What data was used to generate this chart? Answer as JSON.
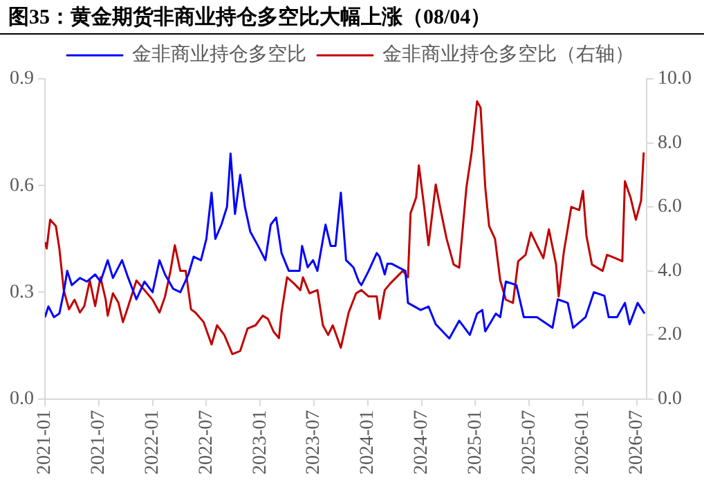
{
  "chart_data": {
    "type": "line",
    "title": "图35：黄金期货非商业持仓多空比大幅上涨（08/04）",
    "xlim": [
      "2021-01-01",
      "2026-08-04"
    ],
    "xticks": [
      "2021-01",
      "2021-07",
      "2022-01",
      "2022-07",
      "2023-01",
      "2023-07",
      "2024-01",
      "2024-07",
      "2025-01",
      "2025-07",
      "2026-01",
      "2026-07"
    ],
    "ylim": [
      0,
      0.9
    ],
    "yticks": [
      {
        "value": 0,
        "label": "0.0"
      },
      {
        "value": 0.3,
        "label": "0.3"
      },
      {
        "value": 0.6,
        "label": "0.6"
      },
      {
        "value": 0.9,
        "label": "0.9"
      }
    ],
    "y2lim": [
      0,
      10
    ],
    "y2ticks": [
      {
        "value": 0,
        "label": "0.0"
      },
      {
        "value": 2,
        "label": "2.0"
      },
      {
        "value": 4,
        "label": "4.0"
      },
      {
        "value": 6,
        "label": "6.0"
      },
      {
        "value": 8,
        "label": "8.0"
      },
      {
        "value": 10,
        "label": "10.0"
      }
    ],
    "grid": false,
    "legend": "top",
    "marker": "none",
    "line_style": "solid",
    "series": [
      {
        "name": "金非商业持仓多空比",
        "color": "#0000ff",
        "x": [
          "2021-01-01",
          "2021-01-13",
          "2021-02-01",
          "2021-02-18",
          "2021-03-04",
          "2021-03-16",
          "2021-04-01",
          "2021-04-28",
          "2021-05-22",
          "2021-06-19",
          "2021-07-07",
          "2021-08-01",
          "2021-08-19",
          "2021-09-19",
          "2021-10-10",
          "2021-11-07",
          "2021-12-04",
          "2022-01-01",
          "2022-01-25",
          "2022-02-12",
          "2022-03-10",
          "2022-04-04",
          "2022-05-01",
          "2022-05-19",
          "2022-06-13",
          "2022-07-01",
          "2022-07-19",
          "2022-08-01",
          "2022-08-22",
          "2022-09-10",
          "2022-09-22",
          "2022-10-07",
          "2022-10-25",
          "2022-11-10",
          "2022-11-28",
          "2022-12-25",
          "2023-01-19",
          "2023-02-06",
          "2023-02-23",
          "2023-03-13",
          "2023-04-07",
          "2023-05-13",
          "2023-05-22",
          "2023-06-10",
          "2023-06-28",
          "2023-07-13",
          "2023-08-10",
          "2023-08-28",
          "2023-09-13",
          "2023-10-01",
          "2023-10-19",
          "2023-11-13",
          "2023-12-01",
          "2023-12-10",
          "2024-01-04",
          "2024-02-01",
          "2024-02-10",
          "2024-02-27",
          "2024-03-07",
          "2024-03-22",
          "2024-05-07",
          "2024-05-16",
          "2024-06-28",
          "2024-07-25",
          "2024-08-19",
          "2024-10-04",
          "2024-11-07",
          "2024-12-13",
          "2025-01-07",
          "2025-01-25",
          "2025-02-04",
          "2025-03-10",
          "2025-03-25",
          "2025-04-13",
          "2025-05-19",
          "2025-06-13",
          "2025-07-28",
          "2025-09-19",
          "2025-10-07",
          "2025-11-10",
          "2025-11-28",
          "2026-01-10",
          "2026-02-07",
          "2026-03-13",
          "2026-03-28",
          "2026-04-25",
          "2026-05-22",
          "2026-06-07",
          "2026-07-04",
          "2026-07-28"
        ],
        "values": [
          0.23,
          0.26,
          0.23,
          0.24,
          0.3,
          0.36,
          0.32,
          0.34,
          0.33,
          0.35,
          0.33,
          0.39,
          0.34,
          0.39,
          0.34,
          0.28,
          0.33,
          0.3,
          0.39,
          0.35,
          0.31,
          0.3,
          0.35,
          0.4,
          0.39,
          0.45,
          0.58,
          0.45,
          0.49,
          0.54,
          0.69,
          0.52,
          0.63,
          0.54,
          0.47,
          0.43,
          0.39,
          0.49,
          0.51,
          0.41,
          0.36,
          0.36,
          0.43,
          0.37,
          0.39,
          0.36,
          0.49,
          0.43,
          0.43,
          0.58,
          0.39,
          0.37,
          0.33,
          0.32,
          0.36,
          0.41,
          0.4,
          0.35,
          0.38,
          0.38,
          0.36,
          0.27,
          0.25,
          0.26,
          0.21,
          0.17,
          0.22,
          0.18,
          0.24,
          0.25,
          0.19,
          0.24,
          0.23,
          0.33,
          0.32,
          0.23,
          0.23,
          0.2,
          0.28,
          0.27,
          0.2,
          0.23,
          0.3,
          0.29,
          0.23,
          0.23,
          0.27,
          0.21,
          0.27,
          0.24
        ]
      },
      {
        "name": "金非商业持仓多空比（右轴）",
        "color": "#c00000",
        "axis": "y2",
        "x": [
          "2021-01-01",
          "2021-01-07",
          "2021-01-19",
          "2021-02-07",
          "2021-02-18",
          "2021-03-04",
          "2021-03-22",
          "2021-04-10",
          "2021-04-28",
          "2021-05-13",
          "2021-06-01",
          "2021-06-19",
          "2021-07-07",
          "2021-07-25",
          "2021-08-01",
          "2021-08-19",
          "2021-09-07",
          "2021-09-22",
          "2021-10-10",
          "2021-11-07",
          "2021-12-04",
          "2022-01-01",
          "2022-01-25",
          "2022-02-12",
          "2022-03-01",
          "2022-03-16",
          "2022-04-04",
          "2022-04-22",
          "2022-05-10",
          "2022-05-25",
          "2022-06-22",
          "2022-07-19",
          "2022-08-07",
          "2022-09-01",
          "2022-09-28",
          "2022-10-25",
          "2022-11-19",
          "2022-12-16",
          "2023-01-10",
          "2023-01-28",
          "2023-02-15",
          "2023-03-04",
          "2023-03-13",
          "2023-04-01",
          "2023-04-25",
          "2023-05-16",
          "2023-05-25",
          "2023-06-16",
          "2023-07-13",
          "2023-08-01",
          "2023-08-19",
          "2023-09-04",
          "2023-10-01",
          "2023-10-28",
          "2023-11-22",
          "2023-12-10",
          "2024-01-04",
          "2024-02-01",
          "2024-02-10",
          "2024-02-27",
          "2024-03-16",
          "2024-04-28",
          "2024-05-16",
          "2024-05-25",
          "2024-06-13",
          "2024-06-22",
          "2024-07-10",
          "2024-07-25",
          "2024-08-19",
          "2024-09-07",
          "2024-09-25",
          "2024-10-19",
          "2024-11-07",
          "2024-12-01",
          "2024-12-19",
          "2025-01-07",
          "2025-01-19",
          "2025-02-04",
          "2025-02-16",
          "2025-03-07",
          "2025-03-25",
          "2025-04-13",
          "2025-05-07",
          "2025-05-25",
          "2025-06-19",
          "2025-07-07",
          "2025-07-28",
          "2025-08-19",
          "2025-09-07",
          "2025-10-01",
          "2025-10-10",
          "2025-10-28",
          "2025-11-22",
          "2025-12-19",
          "2026-01-01",
          "2026-01-13",
          "2026-02-01",
          "2026-03-07",
          "2026-03-22",
          "2026-04-19",
          "2026-05-13",
          "2026-05-22",
          "2026-06-10",
          "2026-06-28",
          "2026-07-16",
          "2026-07-25"
        ],
        "values": [
          4.9,
          4.7,
          5.6,
          5.4,
          4.7,
          3.4,
          2.8,
          3.1,
          2.7,
          2.9,
          3.7,
          2.9,
          3.8,
          3.1,
          2.6,
          3.3,
          3.0,
          2.4,
          2.9,
          3.7,
          3.4,
          3.1,
          2.7,
          3.2,
          4.0,
          4.8,
          4.0,
          4.0,
          2.8,
          2.7,
          2.4,
          1.7,
          2.3,
          2.0,
          1.4,
          1.5,
          2.2,
          2.3,
          2.6,
          2.5,
          2.1,
          1.9,
          2.7,
          3.8,
          3.6,
          3.4,
          3.8,
          3.3,
          3.4,
          2.3,
          2.0,
          2.3,
          1.6,
          2.7,
          3.3,
          3.4,
          3.2,
          3.2,
          2.5,
          3.4,
          3.6,
          4.0,
          3.8,
          5.8,
          6.3,
          7.3,
          6.0,
          4.8,
          6.7,
          5.8,
          5.0,
          4.2,
          4.1,
          6.6,
          7.7,
          9.3,
          9.1,
          6.6,
          5.4,
          5.0,
          3.7,
          3.1,
          3.0,
          4.3,
          4.5,
          5.2,
          4.8,
          4.4,
          5.3,
          4.2,
          3.2,
          4.6,
          6.0,
          5.9,
          6.5,
          5.1,
          4.2,
          4.0,
          4.5,
          4.4,
          4.3,
          6.8,
          6.3,
          5.6,
          6.2,
          7.7
        ]
      }
    ]
  }
}
